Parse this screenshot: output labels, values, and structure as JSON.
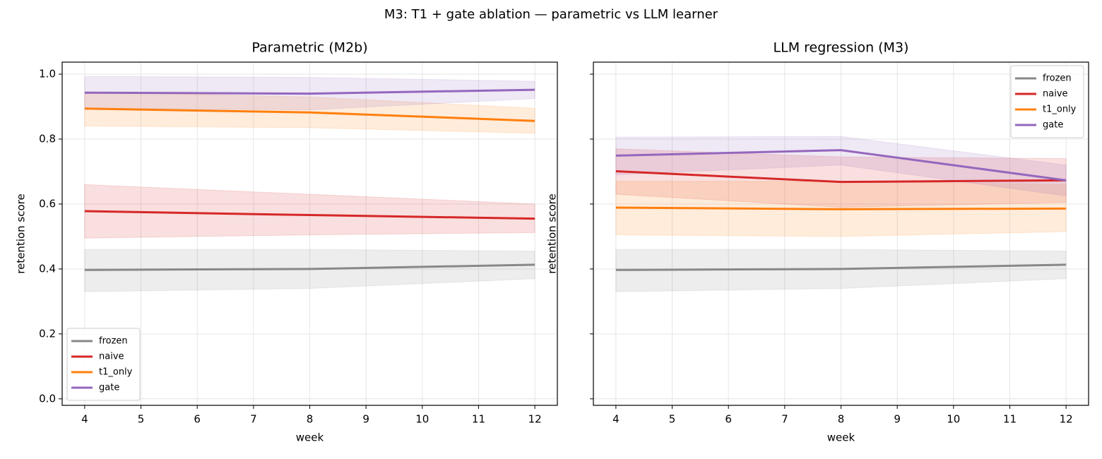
{
  "title": "M3: T1 + gate ablation — parametric vs LLM learner",
  "chart_data": [
    {
      "type": "line",
      "title": "Parametric (M2b)",
      "xlabel": "week",
      "ylabel": "retention score",
      "x": [
        4,
        8,
        12
      ],
      "xlim": [
        3.6,
        12.4
      ],
      "ylim": [
        -0.02,
        1.037
      ],
      "xticks": [
        4,
        5,
        6,
        7,
        8,
        9,
        10,
        11,
        12
      ],
      "yticks": [
        {
          "value": 0,
          "label": "0.0"
        },
        0.2,
        0.4,
        0.6,
        0.8,
        {
          "value": 1,
          "label": "1.0"
        }
      ],
      "show_ytick_labels": true,
      "grid": true,
      "legend": "lower left",
      "series": [
        {
          "name": "frozen",
          "color": "#888888",
          "values": [
            0.397,
            0.4,
            0.413
          ],
          "lower": [
            0.33,
            0.34,
            0.37
          ],
          "upper": [
            0.46,
            0.46,
            0.455
          ]
        },
        {
          "name": "naive",
          "color": "#d62728",
          "values": [
            0.578,
            0.566,
            0.555
          ],
          "lower": [
            0.495,
            0.505,
            0.512
          ],
          "upper": [
            0.66,
            0.63,
            0.6
          ]
        },
        {
          "name": "t1_only",
          "color": "#ff7f0e",
          "values": [
            0.894,
            0.882,
            0.856
          ],
          "lower": [
            0.84,
            0.835,
            0.818
          ],
          "upper": [
            0.945,
            0.93,
            0.895
          ]
        },
        {
          "name": "gate",
          "color": "#9467bd",
          "values": [
            0.943,
            0.94,
            0.952
          ],
          "lower": [
            0.895,
            0.89,
            0.925
          ],
          "upper": [
            0.993,
            0.99,
            0.978
          ]
        }
      ]
    },
    {
      "type": "line",
      "title": "LLM regression (M3)",
      "xlabel": "week",
      "ylabel": "retention score",
      "x": [
        4,
        8,
        12
      ],
      "xlim": [
        3.6,
        12.4
      ],
      "ylim": [
        -0.02,
        1.037
      ],
      "xticks": [
        4,
        5,
        6,
        7,
        8,
        9,
        10,
        11,
        12
      ],
      "yticks": [
        0,
        0.2,
        0.4,
        0.6,
        0.8,
        1
      ],
      "show_ytick_labels": false,
      "grid": true,
      "legend": "upper right",
      "series": [
        {
          "name": "frozen",
          "color": "#888888",
          "values": [
            0.397,
            0.4,
            0.413
          ],
          "lower": [
            0.33,
            0.34,
            0.37
          ],
          "upper": [
            0.46,
            0.46,
            0.455
          ]
        },
        {
          "name": "naive",
          "color": "#d62728",
          "values": [
            0.701,
            0.668,
            0.673
          ],
          "lower": [
            0.63,
            0.59,
            0.605
          ],
          "upper": [
            0.77,
            0.745,
            0.74
          ]
        },
        {
          "name": "t1_only",
          "color": "#ff7f0e",
          "values": [
            0.589,
            0.584,
            0.586
          ],
          "lower": [
            0.505,
            0.5,
            0.515
          ],
          "upper": [
            0.67,
            0.67,
            0.66
          ]
        },
        {
          "name": "gate",
          "color": "#9467bd",
          "values": [
            0.749,
            0.766,
            0.673
          ],
          "lower": [
            0.69,
            0.72,
            0.625
          ],
          "upper": [
            0.806,
            0.808,
            0.72
          ]
        }
      ]
    }
  ]
}
